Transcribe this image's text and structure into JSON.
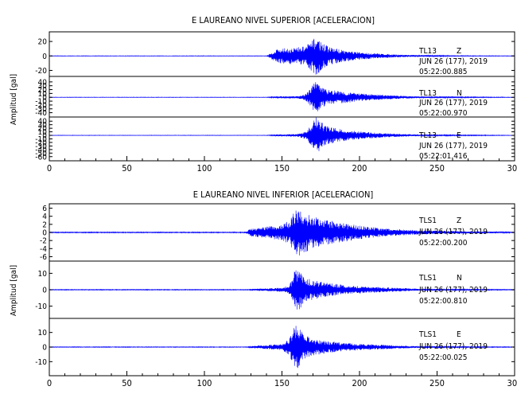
{
  "chart_data": [
    {
      "type": "line",
      "title": "E LAUREANO NIVEL SUPERIOR [ACELERACION]",
      "ylabel": "Amplitud [gal]",
      "x_ticks": [
        0,
        50,
        100,
        150,
        200,
        250,
        300
      ],
      "xlim": [
        0,
        300
      ],
      "line_color": "#0000ff",
      "panels": [
        {
          "station": "TL13",
          "component": "Z",
          "date": "JUN 26 (177), 2019",
          "time": "05:22:00.885",
          "ylim": [
            -25,
            30
          ],
          "yticks": [
            -20,
            0,
            20
          ],
          "x": [
            0,
            140,
            143,
            147,
            160,
            165,
            170,
            172,
            175,
            180,
            190,
            200,
            215,
            230,
            260,
            300
          ],
          "envelope": [
            0.3,
            0.3,
            4,
            10,
            12,
            14,
            22,
            28,
            20,
            13,
            8,
            5,
            3,
            1.5,
            0.5,
            0.3
          ]
        },
        {
          "station": "TL13",
          "component": "N",
          "date": "JUN 26 (177), 2019",
          "time": "05:22:00.970",
          "ylim": [
            -45,
            48
          ],
          "yticks": [
            -40,
            -30,
            -20,
            -10,
            0,
            10,
            20,
            30,
            40
          ],
          "x": [
            0,
            140,
            145,
            160,
            165,
            168,
            170,
            172,
            175,
            180,
            190,
            200,
            215,
            240,
            300
          ],
          "envelope": [
            0.5,
            0.5,
            2,
            3,
            8,
            20,
            35,
            42,
            28,
            20,
            15,
            10,
            6,
            2,
            0.5
          ]
        },
        {
          "station": "TL13",
          "component": "E",
          "date": "JUN 26 (177), 2019",
          "time": "05:22:01.416",
          "ylim": [
            -65,
            45
          ],
          "yticks": [
            -60,
            -50,
            -40,
            -30,
            -20,
            -10,
            0,
            10,
            20,
            30,
            40
          ],
          "x": [
            0,
            140,
            145,
            160,
            165,
            168,
            170,
            172,
            175,
            180,
            190,
            200,
            215,
            240,
            300
          ],
          "envelope": [
            0.5,
            0.5,
            2,
            4,
            10,
            25,
            40,
            55,
            38,
            25,
            16,
            11,
            6,
            2,
            0.5
          ]
        }
      ]
    },
    {
      "type": "line",
      "title": "E LAUREANO NIVEL INFERIOR [ACELERACION]",
      "ylabel": "Amplitud [gal]",
      "x_ticks": [
        0,
        50,
        100,
        150,
        200,
        250,
        300
      ],
      "xlim": [
        0,
        300
      ],
      "line_color": "#0000ff",
      "panels": [
        {
          "station": "TLS1",
          "component": "Z",
          "date": "JUN 26 (177), 2019",
          "time": "05:22:00.200",
          "ylim": [
            -6.5,
            6.5
          ],
          "yticks": [
            -6,
            -4,
            -2,
            0,
            2,
            4,
            6
          ],
          "x": [
            0,
            126,
            130,
            140,
            150,
            155,
            157,
            160,
            165,
            170,
            180,
            195,
            215,
            240,
            300
          ],
          "envelope": [
            0.1,
            0.1,
            1.0,
            1.4,
            2.0,
            3.0,
            4.5,
            6.0,
            5.0,
            4.0,
            3.0,
            2.0,
            1.0,
            0.5,
            0.1
          ]
        },
        {
          "station": "TLS1",
          "component": "N",
          "date": "JUN 26 (177), 2019",
          "time": "05:22:00.810",
          "ylim": [
            -16,
            16
          ],
          "yticks": [
            -10,
            0,
            10
          ],
          "x": [
            0,
            128,
            132,
            150,
            155,
            157,
            159,
            162,
            165,
            170,
            180,
            195,
            215,
            240,
            300
          ],
          "envelope": [
            0.2,
            0.2,
            0.6,
            1.2,
            3.0,
            8.0,
            14.0,
            11.0,
            8.0,
            6.0,
            4.0,
            2.5,
            1.5,
            0.5,
            0.2
          ]
        },
        {
          "station": "TLS1",
          "component": "E",
          "date": "JUN 26 (177), 2019",
          "time": "05:22:00.025",
          "ylim": [
            -18,
            18
          ],
          "yticks": [
            -10,
            0,
            10
          ],
          "x": [
            0,
            128,
            132,
            150,
            155,
            157,
            159,
            162,
            165,
            170,
            180,
            195,
            215,
            240,
            300
          ],
          "envelope": [
            0.2,
            0.2,
            1.0,
            2.0,
            6.0,
            12.0,
            16.0,
            12.0,
            8.0,
            6.0,
            4.0,
            2.5,
            1.5,
            0.5,
            0.2
          ]
        }
      ]
    }
  ]
}
